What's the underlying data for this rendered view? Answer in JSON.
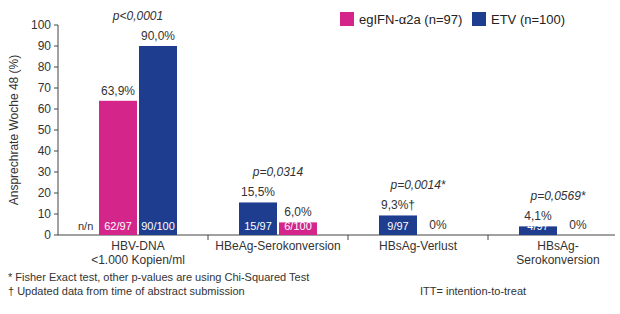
{
  "chart_data": {
    "type": "bar",
    "y_label": "Ansprechrate Woche 48 (%)",
    "categories": [
      "HBV-DNA\n<1.000 Kopien/ml",
      "HBeAg-Serokonversion",
      "HBsAg-Verlust",
      "HBsAg-\nSerokonversion"
    ],
    "series": [
      {
        "name": "egIFN-α2a (n=97)",
        "color": "#d4258a",
        "values": [
          63.9,
          6.0,
          0,
          0
        ],
        "value_labels": [
          "63,9%",
          "6,0%",
          "0%",
          "0%"
        ],
        "counts": [
          "62/97",
          "6/100",
          null,
          null
        ]
      },
      {
        "name": "ETV (n=100)",
        "color": "#1e3d8f",
        "values": [
          90.0,
          15.5,
          9.3,
          4.1
        ],
        "value_labels": [
          "90,0%",
          "15,5%",
          "9,3%†",
          "4,1%"
        ],
        "counts": [
          "90/100",
          "15/97",
          "9/97",
          "4/97"
        ]
      }
    ],
    "p_values": [
      "p<0,0001",
      "p=0,0314",
      "p=0,0014*",
      "p=0,0569*"
    ],
    "annotations": [
      "n/n"
    ],
    "footnotes": [
      "* Fisher Exact test, other p-values are using Chi-Squared Test",
      "† Updated data from time of abstract submission",
      "ITT= intention-to-treat"
    ],
    "ylim": [
      0,
      100
    ],
    "yticks": [
      0,
      10,
      20,
      30,
      40,
      50,
      60,
      70,
      80,
      90,
      100
    ],
    "grid": false,
    "legend": "upper right",
    "data_labels": true
  }
}
